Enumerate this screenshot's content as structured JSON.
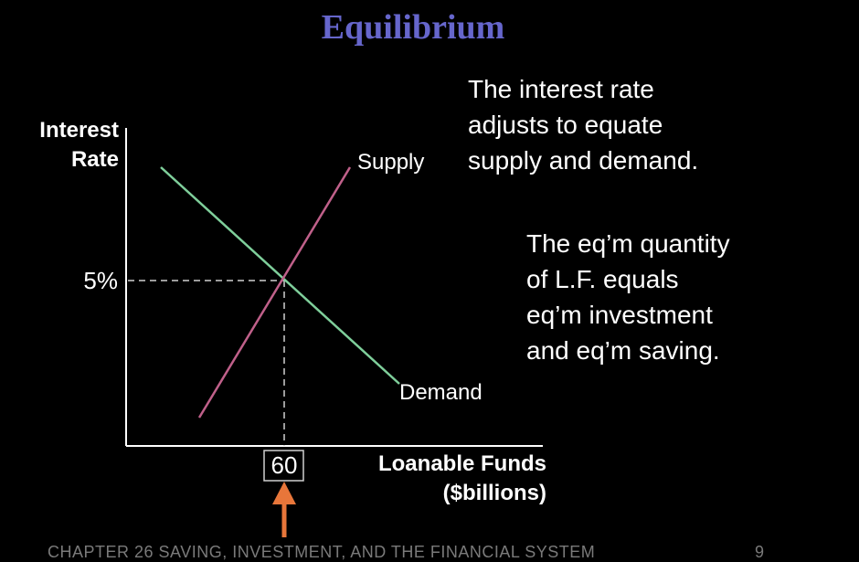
{
  "title": "Equilibrium",
  "text_blocks": {
    "first": [
      "The interest rate",
      "adjusts to equate",
      "supply and demand."
    ],
    "second": [
      "The eq’m quantity",
      "of L.F. equals",
      "eq’m investment",
      "and eq’m saving."
    ]
  },
  "diagram": {
    "y_axis_label": [
      "Interest",
      "Rate"
    ],
    "x_axis_label": [
      "Loanable Funds",
      "($billions)"
    ],
    "supply_label": "Supply",
    "demand_label": "Demand",
    "eq_rate_label": "5%",
    "eq_quantity_label": "60"
  },
  "colors": {
    "title": "#6666cc",
    "supply": "#c0608a",
    "demand": "#7fcf9b",
    "arrow": "#e8763a",
    "axis": "#ffffff",
    "dashed": "#cfcfcf",
    "footer": "#7a7a7a"
  },
  "footer": {
    "chapter": "CHAPTER 26    SAVING, INVESTMENT, AND THE FINANCIAL SYSTEM",
    "page": "9"
  }
}
